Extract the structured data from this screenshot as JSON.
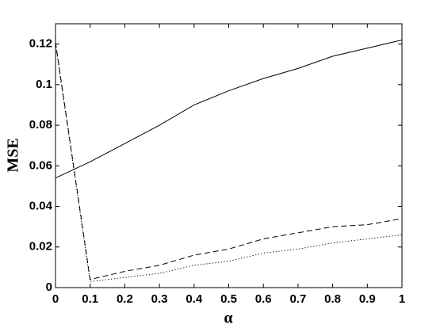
{
  "chart_data": {
    "type": "line",
    "x_label": "α",
    "y_label": "MSE",
    "x": [
      0,
      0.1,
      0.2,
      0.3,
      0.4,
      0.5,
      0.6,
      0.7,
      0.8,
      0.9,
      1
    ],
    "series": [
      {
        "color": "#000000",
        "line_style": "solid",
        "values": [
          0.054,
          0.062,
          0.071,
          0.08,
          0.09,
          0.097,
          0.103,
          0.108,
          0.114,
          0.118,
          0.122
        ]
      },
      {
        "color": "#000000",
        "line_style": "dashed",
        "values": [
          0.121,
          0.004,
          0.008,
          0.011,
          0.016,
          0.019,
          0.024,
          0.027,
          0.03,
          0.031,
          0.034
        ]
      },
      {
        "color": "#000000",
        "line_style": "dotted",
        "values": [
          0.12,
          0.003,
          0.005,
          0.007,
          0.011,
          0.013,
          0.017,
          0.019,
          0.022,
          0.024,
          0.026
        ]
      }
    ],
    "xlim": [
      0,
      1
    ],
    "xticks": [
      0,
      0.1,
      0.2,
      0.3,
      0.4,
      0.5,
      0.6,
      0.7,
      0.8,
      0.9,
      1
    ],
    "ylim": [
      0,
      0.13
    ],
    "yticks": [
      0,
      0.02,
      0.04,
      0.06,
      0.08,
      0.1,
      0.12
    ],
    "grid": false
  }
}
